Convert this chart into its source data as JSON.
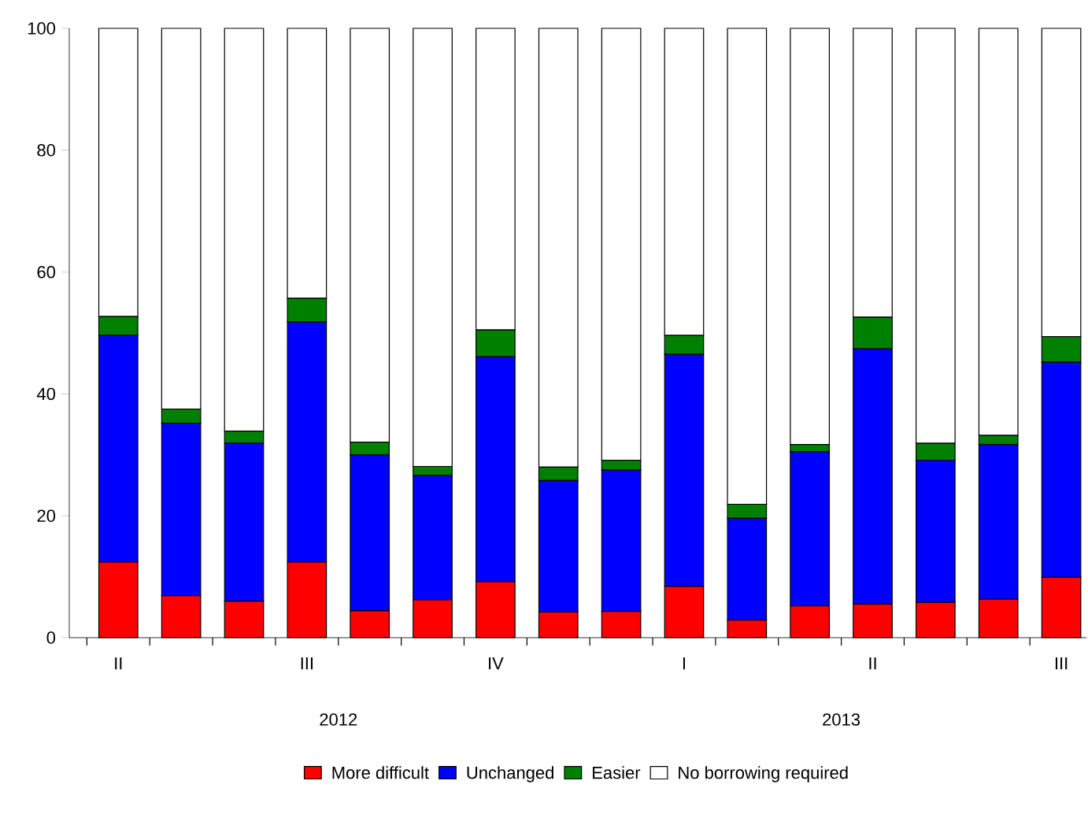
{
  "chart_data": {
    "type": "bar",
    "stacked": true,
    "categories": [
      "II",
      null,
      null,
      "III",
      null,
      null,
      "IV",
      null,
      null,
      "I",
      null,
      null,
      "II",
      null,
      null,
      "III"
    ],
    "series": [
      {
        "name": "More difficult",
        "color": "#ff0000",
        "values": [
          12.4,
          6.9,
          6.0,
          12.4,
          4.4,
          6.2,
          9.2,
          4.2,
          4.3,
          8.4,
          2.9,
          5.2,
          5.5,
          5.8,
          6.3,
          9.9
        ]
      },
      {
        "name": "Unchanged",
        "color": "#0000ff",
        "values": [
          37.2,
          28.3,
          25.9,
          39.4,
          25.6,
          20.4,
          36.9,
          21.6,
          23.2,
          38.1,
          16.7,
          25.3,
          41.9,
          23.3,
          25.4,
          35.3
        ]
      },
      {
        "name": "Easier",
        "color": "#008000",
        "values": [
          3.1,
          2.3,
          2.0,
          3.9,
          2.1,
          1.5,
          4.4,
          2.2,
          1.6,
          3.1,
          2.3,
          1.2,
          5.2,
          2.8,
          1.5,
          4.2
        ]
      },
      {
        "name": "No borrowing required",
        "color": "#ffffff",
        "values": [
          47.3,
          62.5,
          66.1,
          44.3,
          67.9,
          71.9,
          49.5,
          72.0,
          70.9,
          50.4,
          78.1,
          68.3,
          47.4,
          68.1,
          66.8,
          50.6
        ]
      }
    ],
    "annotations": [
      "2012",
      "2013"
    ],
    "ylim": [
      0,
      100
    ],
    "yticks": [
      0,
      20,
      40,
      60,
      80,
      100
    ],
    "grid": false,
    "legend": "bottom"
  }
}
